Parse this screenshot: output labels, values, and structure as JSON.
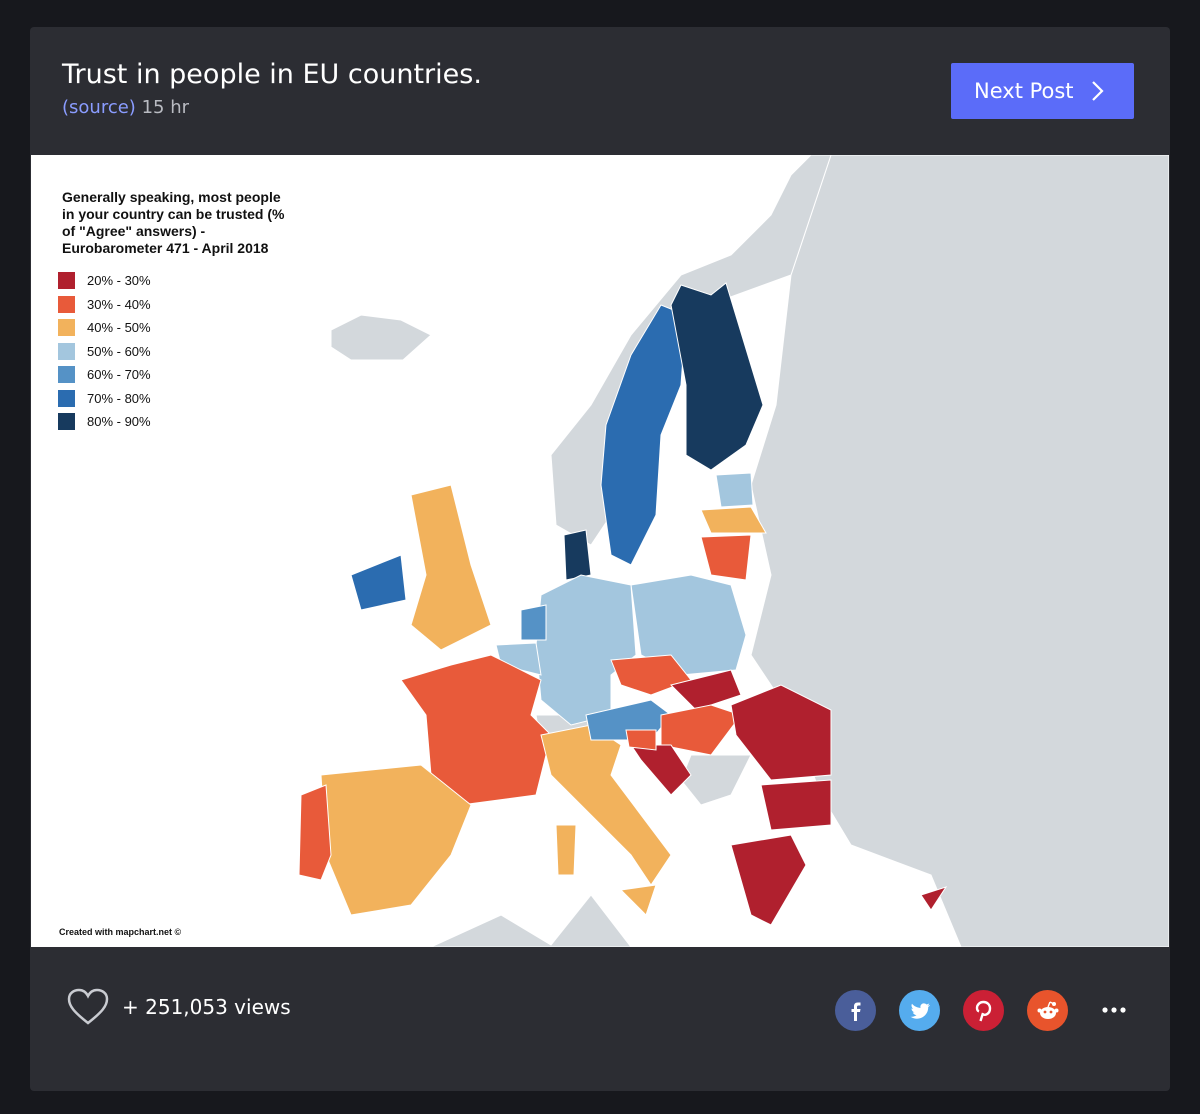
{
  "header": {
    "title": "Trust in people in EU countries.",
    "source_link": "(source)",
    "age": "15 hr",
    "next_button": "Next Post"
  },
  "map": {
    "legend_title": "Generally speaking, most people in your country can be trusted (% of \"Agree\" answers) - Eurobarometer 471 - April 2018",
    "legend": [
      {
        "label": "20% - 30%",
        "color": "#b0202e"
      },
      {
        "label": "30% - 40%",
        "color": "#e85a3a"
      },
      {
        "label": "40% - 50%",
        "color": "#f2b25c"
      },
      {
        "label": "50% - 60%",
        "color": "#a3c6de"
      },
      {
        "label": "60% - 70%",
        "color": "#5592c6"
      },
      {
        "label": "70% - 80%",
        "color": "#2b6cb0"
      },
      {
        "label": "80% - 90%",
        "color": "#173a5e"
      }
    ],
    "credit": "Created with mapchart.net ©"
  },
  "footer": {
    "views": "+ 251,053 views"
  }
}
